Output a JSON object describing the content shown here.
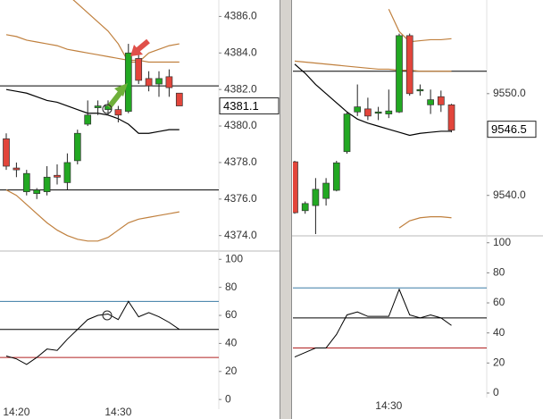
{
  "chart_data": [
    {
      "type": "candlestick",
      "open": [
        4379.3,
        4377.7,
        4376.4,
        4376.3,
        4376.4,
        4377.3,
        4376.9,
        4378.1,
        4380.1,
        4381.0,
        4380.9,
        4380.9,
        4380.8,
        4383.7,
        4382.6,
        4382.3,
        4382.7,
        4381.8
      ],
      "high": [
        4379.6,
        4378.0,
        4377.6,
        4376.6,
        4377.8,
        4377.9,
        4378.5,
        4379.8,
        4381.4,
        4381.4,
        4381.4,
        4381.1,
        4384.5,
        4384.1,
        4383.0,
        4383.0,
        4383.1,
        4381.8
      ],
      "low": [
        4377.6,
        4377.2,
        4376.2,
        4376.0,
        4376.2,
        4376.8,
        4376.5,
        4377.9,
        4380.0,
        4380.6,
        4380.6,
        4380.2,
        4380.7,
        4382.3,
        4381.9,
        4381.6,
        4381.6,
        4381.1
      ],
      "close": [
        4377.8,
        4377.6,
        4377.4,
        4376.5,
        4377.2,
        4377.2,
        4378.0,
        4379.6,
        4380.6,
        4381.1,
        4381.1,
        4380.6,
        4384.0,
        4382.5,
        4382.2,
        4382.6,
        4382.1,
        4381.1
      ],
      "upper_band": [
        4389.9,
        4389.4,
        4388.9,
        4388.4,
        4387.9,
        4387.4,
        4387.2,
        4386.7,
        4386.2,
        4385.7,
        4385.2,
        4384.5,
        4383.5,
        4383.5,
        4384.0,
        4384.2,
        4384.4,
        4384.5
      ],
      "middle_band": [
        4382.0,
        4381.9,
        4381.8,
        4381.6,
        4381.4,
        4381.3,
        4381.1,
        4380.9,
        4380.7,
        4380.7,
        4380.6,
        4380.4,
        4380.1,
        4379.6,
        4379.6,
        4379.7,
        4379.8,
        4379.8
      ],
      "lower_band": [
        4376.5,
        4376.2,
        4375.7,
        4375.2,
        4374.7,
        4374.3,
        4374.0,
        4373.8,
        4373.7,
        4373.7,
        4373.9,
        4374.3,
        4374.7,
        4374.9,
        4375.0,
        4375.1,
        4375.2,
        4375.3
      ],
      "average": [
        4385.0,
        4384.9,
        4384.7,
        4384.6,
        4384.5,
        4384.4,
        4384.2,
        4384.1,
        4384.0,
        4383.9,
        4383.8,
        4383.7,
        4383.6,
        4383.6,
        4383.5,
        4383.5,
        4383.5,
        4383.5
      ],
      "levels": [
        4382.2,
        4376.5
      ],
      "last_price": 4381.1,
      "up_color": "#22a822",
      "down_color": "#e2453b",
      "band_color": "#c0803e",
      "middle_color": "#000000",
      "level_color": "#000000",
      "ylim": [
        4373.3,
        4386.9
      ],
      "yticks": [
        {
          "value": 4374,
          "label": "4374.0"
        },
        {
          "value": 4376,
          "label": "4376.0"
        },
        {
          "value": 4378,
          "label": "4378.0"
        },
        {
          "value": 4380,
          "label": "4380.0"
        },
        {
          "value": 4382,
          "label": "4382.0"
        },
        {
          "value": 4384,
          "label": "4384.0"
        },
        {
          "value": 4386,
          "label": "4386.0"
        }
      ]
    },
    {
      "type": "line",
      "categories": [
        null,
        "14:20",
        null,
        null,
        null,
        null,
        null,
        null,
        null,
        null,
        null,
        "14:30",
        null,
        null,
        null,
        null,
        null,
        null
      ],
      "values": [
        31,
        29,
        25,
        30,
        36,
        35,
        43,
        50,
        57,
        60,
        61,
        57,
        70,
        59,
        62,
        59,
        55,
        50
      ],
      "color": "#000000",
      "levels": [
        70,
        50,
        30
      ],
      "level_colors": [
        "#3a7ca5",
        "#000000",
        "#b02020"
      ],
      "ylim": [
        -5,
        104
      ],
      "yticks": [
        0,
        20,
        40,
        60,
        80,
        100
      ]
    },
    {
      "type": "candlestick",
      "open": [
        9543.3,
        9538.5,
        9539.0,
        9539.7,
        9540.5,
        9544.3,
        9548.2,
        9548.5,
        9548.1,
        9548.0,
        9548.2,
        9555.7,
        9550.3,
        9548.9,
        9549.7,
        9548.9
      ],
      "high": [
        9543.4,
        9539.4,
        9541.7,
        9541.7,
        9543.4,
        9548.2,
        9550.9,
        9549.6,
        9548.7,
        9550.4,
        9555.9,
        9555.9,
        9550.9,
        9550.4,
        9550.3,
        9549.0
      ],
      "low": [
        9538.2,
        9538.2,
        9536.2,
        9539.0,
        9540.4,
        9544.1,
        9547.8,
        9547.4,
        9547.4,
        9547.6,
        9548.1,
        9549.8,
        9549.8,
        9548.0,
        9548.2,
        9546.2
      ],
      "close": [
        9538.3,
        9539.2,
        9540.6,
        9541.2,
        9543.2,
        9548.0,
        9548.7,
        9547.8,
        9548.2,
        9548.3,
        9555.7,
        9550.0,
        9550.4,
        9549.4,
        9548.9,
        9546.4
      ],
      "upper_band": [
        null,
        null,
        null,
        null,
        null,
        null,
        null,
        null,
        null,
        9558.3,
        9556.1,
        9555.1,
        9555.2,
        9555.3,
        9555.3,
        9555.4
      ],
      "middle_band": [
        9552.9,
        9552.0,
        9550.9,
        9550.0,
        9549.1,
        9548.2,
        9547.5,
        9547.1,
        9546.8,
        9546.5,
        9546.2,
        9545.9,
        9546.1,
        9546.2,
        9546.3,
        9546.3
      ],
      "lower_band": [
        null,
        null,
        null,
        null,
        null,
        null,
        null,
        null,
        null,
        null,
        9536.8,
        9537.5,
        9537.8,
        9537.9,
        9537.9,
        9537.8
      ],
      "average": [
        9553.2,
        9553.1,
        9553.0,
        9552.9,
        9552.8,
        9552.7,
        9552.6,
        9552.5,
        9552.4,
        9552.4,
        9552.3,
        9552.3,
        9552.2,
        9552.2,
        9552.2,
        9552.2
      ],
      "levels": [
        9552.2
      ],
      "last_price": 9546.5,
      "up_color": "#22a822",
      "down_color": "#e2453b",
      "band_color": "#c0803e",
      "middle_color": "#000000",
      "level_color": "#000000",
      "ylim": [
        9536.2,
        9559.2
      ],
      "yticks": [
        {
          "value": 9540,
          "label": "9540.0"
        },
        {
          "value": 9550,
          "label": "9550.0"
        }
      ]
    },
    {
      "type": "line",
      "categories": [
        null,
        null,
        null,
        null,
        null,
        null,
        null,
        null,
        null,
        "14:30",
        null,
        null,
        null,
        null,
        null,
        null
      ],
      "values": [
        24,
        27,
        30,
        30,
        39,
        52,
        54,
        51,
        51,
        51,
        69,
        52,
        50,
        52,
        50,
        45
      ],
      "color": "#000000",
      "levels": [
        70,
        50,
        30
      ],
      "level_colors": [
        "#3a7ca5",
        "#000000",
        "#b02020"
      ],
      "ylim": [
        -3,
        104
      ],
      "yticks": [
        0,
        20,
        40,
        60,
        80,
        100
      ]
    }
  ]
}
